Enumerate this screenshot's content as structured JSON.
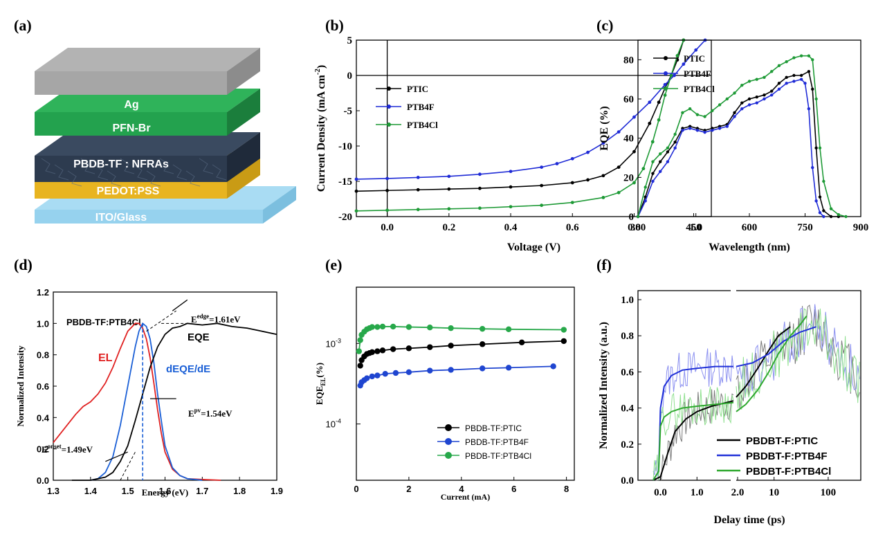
{
  "panel_labels": [
    "(a)",
    "(b)",
    "(c)",
    "(d)",
    "(e)",
    "(f)"
  ],
  "device_stack": {
    "layers": [
      {
        "label": "Ag",
        "top": "#b3b3b3",
        "front": "#a6a6a6",
        "side": "#8c8c8c"
      },
      {
        "label": "PFN-Br",
        "top": "#2fb35a",
        "front": "#23a24e",
        "side": "#1b7e3c"
      },
      {
        "label": "PBDB-TF : NFRAs",
        "top": "#3a4a60",
        "front": "#2d3b4f",
        "side": "#1f2a3a"
      },
      {
        "label": "PEDOT:PSS",
        "top": "#f2c53d",
        "front": "#e8b420",
        "side": "#c99b15"
      },
      {
        "label": "ITO/Glass",
        "top": "#a9dcf3",
        "front": "#96d2ee",
        "side": "#7cbfdf"
      }
    ]
  },
  "chart_data": [
    {
      "type": "line",
      "panel": "(b)",
      "xlabel": "Voltage (V)",
      "ylabel": "Current Density (mA cm",
      "ylabel_sup": "-2",
      "ylabel_end": ")",
      "xlim": [
        -0.1,
        1.05
      ],
      "ylim": [
        -20,
        5
      ],
      "xticks": [
        "0.0",
        "0.2",
        "0.4",
        "0.6",
        "0.8",
        "1.0"
      ],
      "yticks": [
        "5",
        "0",
        "-5",
        "-10",
        "-15",
        "-20"
      ],
      "series": [
        {
          "name": "PTIC",
          "color": "#000000",
          "x": [
            -0.1,
            0.0,
            0.1,
            0.2,
            0.3,
            0.4,
            0.5,
            0.6,
            0.65,
            0.7,
            0.75,
            0.8,
            0.85,
            0.88,
            0.9,
            0.92,
            0.94,
            0.96
          ],
          "y": [
            -16.4,
            -16.3,
            -16.2,
            -16.1,
            -16.0,
            -15.8,
            -15.6,
            -15.2,
            -14.8,
            -14.2,
            -13.0,
            -10.8,
            -6.8,
            -3.8,
            -1.8,
            0.0,
            2.2,
            5.0
          ]
        },
        {
          "name": "PTB4F",
          "color": "#1f2bd6",
          "x": [
            -0.1,
            0.0,
            0.1,
            0.2,
            0.3,
            0.4,
            0.5,
            0.55,
            0.6,
            0.65,
            0.7,
            0.75,
            0.8,
            0.85,
            0.9,
            0.93,
            0.96,
            1.0,
            1.03
          ],
          "y": [
            -14.7,
            -14.6,
            -14.45,
            -14.3,
            -14.0,
            -13.6,
            -13.0,
            -12.5,
            -11.8,
            -10.9,
            -9.6,
            -8.0,
            -5.9,
            -3.8,
            -1.3,
            0.0,
            1.6,
            3.6,
            5.0
          ]
        },
        {
          "name": "PTB4Cl",
          "color": "#1e9a36",
          "x": [
            -0.1,
            0.0,
            0.1,
            0.2,
            0.3,
            0.4,
            0.5,
            0.6,
            0.7,
            0.75,
            0.8,
            0.83,
            0.86,
            0.88,
            0.9,
            0.92,
            0.94,
            0.96
          ],
          "y": [
            -19.2,
            -19.1,
            -19.0,
            -18.9,
            -18.8,
            -18.6,
            -18.4,
            -18.0,
            -17.3,
            -16.6,
            -15.2,
            -13.2,
            -9.4,
            -6.3,
            -2.8,
            0.0,
            2.8,
            5.0
          ]
        }
      ]
    },
    {
      "type": "line",
      "panel": "(c)",
      "xlabel": "Wavelength (nm)",
      "ylabel": "EQE (%)",
      "xlim": [
        300,
        900
      ],
      "ylim": [
        0,
        90
      ],
      "xticks": [
        "300",
        "450",
        "600",
        "750",
        "900"
      ],
      "yticks": [
        "0",
        "20",
        "40",
        "60",
        "80"
      ],
      "series": [
        {
          "name": "PTIC",
          "color": "#000000",
          "x": [
            300,
            320,
            340,
            360,
            380,
            400,
            420,
            440,
            460,
            480,
            500,
            520,
            540,
            560,
            580,
            600,
            620,
            640,
            660,
            680,
            700,
            720,
            740,
            760,
            770,
            780,
            790,
            800,
            820,
            840
          ],
          "y": [
            0,
            10,
            22,
            28,
            33,
            38,
            45,
            46,
            45,
            44,
            45,
            46,
            47,
            53,
            58,
            60,
            61,
            62,
            64,
            68,
            71,
            72,
            72,
            74,
            65,
            35,
            10,
            3,
            0,
            0
          ]
        },
        {
          "name": "PTB4F",
          "color": "#1f2bd6",
          "x": [
            300,
            320,
            340,
            360,
            380,
            400,
            420,
            440,
            460,
            480,
            500,
            520,
            540,
            560,
            580,
            600,
            620,
            640,
            660,
            680,
            700,
            720,
            740,
            750,
            760,
            770,
            780,
            790,
            800
          ],
          "y": [
            0,
            8,
            18,
            23,
            28,
            35,
            44,
            45,
            44,
            43,
            44,
            45,
            46,
            51,
            55,
            57,
            58,
            60,
            62,
            65,
            68,
            69,
            70,
            68,
            55,
            25,
            8,
            2,
            0
          ]
        },
        {
          "name": "PTB4Cl",
          "color": "#1e9a36",
          "x": [
            300,
            320,
            340,
            360,
            380,
            400,
            420,
            440,
            460,
            480,
            500,
            520,
            540,
            560,
            580,
            600,
            620,
            640,
            660,
            680,
            700,
            720,
            740,
            760,
            770,
            780,
            790,
            800,
            820,
            840,
            860
          ],
          "y": [
            0,
            15,
            28,
            32,
            35,
            42,
            53,
            55,
            52,
            51,
            54,
            57,
            60,
            63,
            67,
            69,
            70,
            71,
            74,
            77,
            79,
            81,
            82,
            82,
            80,
            60,
            35,
            18,
            4,
            1,
            0
          ]
        }
      ]
    },
    {
      "type": "line",
      "panel": "(d)",
      "xlabel": "Energy (eV)",
      "ylabel": "Normalized Intensity",
      "xlim": [
        1.3,
        1.9
      ],
      "ylim": [
        0,
        1.2
      ],
      "xticks": [
        "1.3",
        "1.4",
        "1.5",
        "1.6",
        "1.7",
        "1.8",
        "1.9"
      ],
      "yticks": [
        "0.0",
        "0.2",
        "0.4",
        "0.6",
        "0.8",
        "1.0",
        "1.2"
      ],
      "title": "PBDB-TF:PTB4Cl",
      "series": [
        {
          "name": "EL",
          "color": "#e02020",
          "x": [
            1.3,
            1.33,
            1.36,
            1.38,
            1.4,
            1.42,
            1.44,
            1.46,
            1.48,
            1.5,
            1.52,
            1.53,
            1.54,
            1.55,
            1.56,
            1.57,
            1.58,
            1.59,
            1.6,
            1.62,
            1.64,
            1.66,
            1.7,
            1.75
          ],
          "y": [
            0.24,
            0.33,
            0.42,
            0.47,
            0.5,
            0.55,
            0.62,
            0.72,
            0.84,
            0.95,
            1.0,
            1.0,
            0.97,
            0.9,
            0.78,
            0.62,
            0.45,
            0.3,
            0.18,
            0.07,
            0.03,
            0.01,
            0.005,
            0.0
          ]
        },
        {
          "name": "dEQE/dE",
          "color": "#1a5fd6",
          "x": [
            1.4,
            1.42,
            1.44,
            1.46,
            1.48,
            1.5,
            1.52,
            1.53,
            1.54,
            1.55,
            1.56,
            1.57,
            1.58,
            1.59,
            1.6,
            1.62,
            1.64,
            1.66,
            1.68,
            1.7
          ],
          "y": [
            0.0,
            0.01,
            0.05,
            0.15,
            0.35,
            0.6,
            0.85,
            0.95,
            1.0,
            0.98,
            0.9,
            0.75,
            0.55,
            0.38,
            0.22,
            0.08,
            0.03,
            0.01,
            0.005,
            0.0
          ]
        },
        {
          "name": "EQE",
          "color": "#000000",
          "x": [
            1.35,
            1.4,
            1.44,
            1.46,
            1.48,
            1.5,
            1.52,
            1.54,
            1.56,
            1.58,
            1.6,
            1.62,
            1.64,
            1.66,
            1.7,
            1.74,
            1.78,
            1.82,
            1.86,
            1.9
          ],
          "y": [
            0.0,
            0.0,
            0.02,
            0.05,
            0.12,
            0.22,
            0.38,
            0.55,
            0.72,
            0.85,
            0.93,
            0.97,
            0.98,
            1.0,
            0.99,
            1.0,
            0.98,
            0.97,
            0.95,
            0.93
          ]
        }
      ],
      "annotations": [
        {
          "label": "EL",
          "color": "#e02020"
        },
        {
          "label": "EQE",
          "color": "#000000"
        },
        {
          "label": "dEQE/dE",
          "color": "#1a5fd6"
        },
        {
          "label": "E",
          "sup": "edge",
          "val": "=1.61eV"
        },
        {
          "label": "E",
          "sup": "pv",
          "val": "=1.54eV"
        },
        {
          "label": "E",
          "sup": "onset",
          "val": "=1.49eV"
        }
      ]
    },
    {
      "type": "scatter",
      "panel": "(e)",
      "xlabel": "Current (mA)",
      "ylabel": "EQE",
      "ylabel_sub": "EL",
      "ylabel_end": "(%)",
      "xlim": [
        0,
        8.3
      ],
      "ylim_log": [
        2e-05,
        0.005
      ],
      "xticks": [
        "0",
        "2",
        "4",
        "6",
        "8"
      ],
      "yticks": [
        {
          "base": "10",
          "exp": "-3",
          "v": 0.001
        },
        {
          "base": "10",
          "exp": "-4",
          "v": 0.0001
        }
      ],
      "series": [
        {
          "name": "PBDB-TF:PTIC",
          "color": "#000000",
          "x": [
            0.15,
            0.2,
            0.3,
            0.4,
            0.5,
            0.6,
            0.8,
            1.0,
            1.4,
            2.0,
            2.8,
            3.6,
            4.8,
            6.3,
            7.9
          ],
          "y": [
            0.00053,
            0.00062,
            0.00069,
            0.00074,
            0.00076,
            0.00078,
            0.0008,
            0.00082,
            0.00085,
            0.00087,
            0.0009,
            0.00094,
            0.00098,
            0.00103,
            0.00107
          ]
        },
        {
          "name": "PBDB-TF:PTB4F",
          "color": "#1f45d0",
          "x": [
            0.15,
            0.2,
            0.3,
            0.4,
            0.6,
            0.8,
            1.1,
            1.5,
            2.0,
            2.8,
            3.6,
            4.8,
            5.8,
            7.5
          ],
          "y": [
            0.0003,
            0.00033,
            0.00035,
            0.00037,
            0.00039,
            0.0004,
            0.00042,
            0.00043,
            0.00044,
            0.00046,
            0.00047,
            0.00049,
            0.0005,
            0.00052
          ]
        },
        {
          "name": "PBDB-TF:PTB4Cl",
          "color": "#27a84a",
          "x": [
            0.1,
            0.15,
            0.2,
            0.3,
            0.4,
            0.5,
            0.6,
            0.8,
            1.0,
            1.4,
            2.0,
            2.8,
            3.6,
            4.8,
            5.8,
            7.9
          ],
          "y": [
            0.0008,
            0.0011,
            0.00128,
            0.0014,
            0.0015,
            0.00155,
            0.0016,
            0.0016,
            0.00162,
            0.00162,
            0.0016,
            0.00158,
            0.00155,
            0.00152,
            0.0015,
            0.00148
          ]
        }
      ]
    },
    {
      "type": "line",
      "panel": "(f)",
      "xlabel": "Delay time (ps)",
      "ylabel": "Normalized Intensity (a.u.)",
      "ylim": [
        0,
        1.05
      ],
      "xticks": [
        "0.0",
        "1.0",
        "2.0",
        "10",
        "100"
      ],
      "yticks": [
        "0.0",
        "0.2",
        "0.4",
        "0.6",
        "0.8",
        "1.0"
      ],
      "series": [
        {
          "name": "PBDBT-F:PTIC",
          "color": "#000000",
          "x_lin": [
            -0.2,
            0.0,
            0.2,
            0.4,
            0.7,
            1.0,
            1.4,
            1.8,
            2.0
          ],
          "y_lin": [
            0.0,
            0.02,
            0.15,
            0.27,
            0.34,
            0.38,
            0.41,
            0.43,
            0.44
          ],
          "x_log": [
            2,
            3,
            5,
            8,
            12,
            20
          ],
          "y_log": [
            0.46,
            0.52,
            0.62,
            0.72,
            0.8,
            0.85
          ]
        },
        {
          "name": "PBDBT-F:PTB4F",
          "color": "#2030d8",
          "x_lin": [
            -0.2,
            -0.05,
            0.0,
            0.1,
            0.3,
            0.6,
            1.0,
            1.5,
            2.0
          ],
          "y_lin": [
            0.0,
            0.05,
            0.4,
            0.52,
            0.58,
            0.61,
            0.62,
            0.63,
            0.63
          ],
          "x_log": [
            2,
            4,
            8,
            15,
            30,
            60
          ],
          "y_log": [
            0.63,
            0.65,
            0.7,
            0.77,
            0.82,
            0.85
          ]
        },
        {
          "name": "PBDBT-F:PTB4Cl",
          "color": "#2ea82e",
          "x_lin": [
            -0.2,
            -0.05,
            0.0,
            0.1,
            0.3,
            0.6,
            1.0,
            1.5,
            2.0
          ],
          "y_lin": [
            0.0,
            0.05,
            0.3,
            0.35,
            0.38,
            0.4,
            0.41,
            0.42,
            0.43
          ],
          "x_log": [
            2,
            3,
            5,
            8,
            12,
            20,
            30,
            40
          ],
          "y_log": [
            0.38,
            0.42,
            0.5,
            0.6,
            0.7,
            0.8,
            0.86,
            0.91
          ]
        }
      ]
    }
  ]
}
